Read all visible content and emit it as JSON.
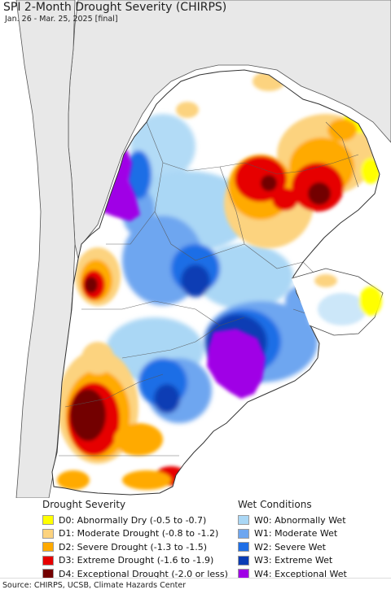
{
  "header": {
    "title": "SPI 2-Month Drought Severity (CHIRPS)",
    "subtitle": "Jan. 26 - Mar. 25, 2025 [final]"
  },
  "map": {
    "ocean_color": "#ffffff",
    "land_color": "#ffffff",
    "neighbor_land_color": "#e8e8e8",
    "border_color": "#555555"
  },
  "legend": {
    "drought": {
      "title": "Drought Severity",
      "items": [
        {
          "label": "D0: Abnormally Dry (-0.5 to -0.7)",
          "color": "#ffff00"
        },
        {
          "label": "D1: Moderate Drought (-0.8 to -1.2)",
          "color": "#fcd37f"
        },
        {
          "label": "D2: Severe Drought (-1.3 to -1.5)",
          "color": "#ffaa00"
        },
        {
          "label": "D3: Extreme Drought (-1.6 to -1.9)",
          "color": "#e60000"
        },
        {
          "label": "D4: Exceptional Drought (-2.0 or less)",
          "color": "#730000"
        }
      ]
    },
    "wet": {
      "title": "Wet Conditions",
      "items": [
        {
          "label": "W0: Abnormally Wet",
          "color": "#aad7f5"
        },
        {
          "label": "W1: Moderate Wet",
          "color": "#6ea6f0"
        },
        {
          "label": "W2: Severe Wet",
          "color": "#1e6ee6"
        },
        {
          "label": "W3: Extreme Wet",
          "color": "#0a3cb4"
        },
        {
          "label": "W4: Exceptional Wet",
          "color": "#a000e6"
        }
      ]
    }
  },
  "footer": {
    "source": "Source: CHIRPS, UCSB, Climate Hazards Center"
  }
}
